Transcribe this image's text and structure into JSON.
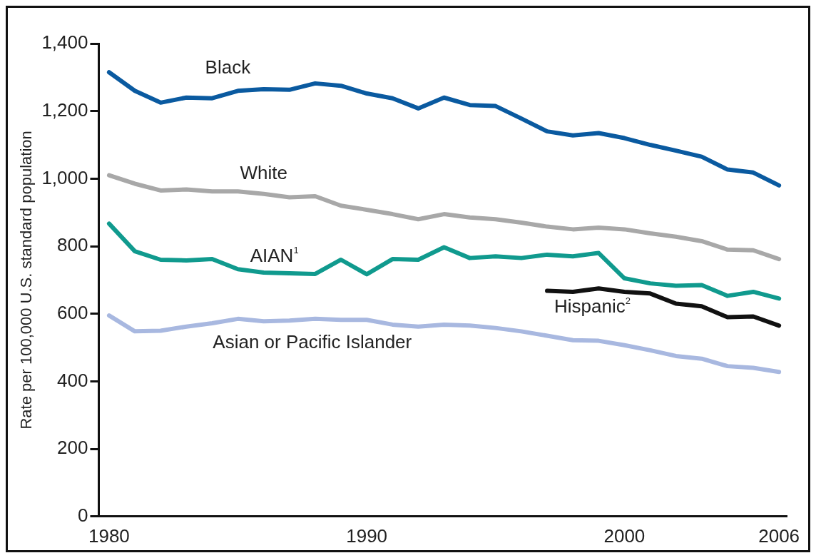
{
  "chart_data": {
    "type": "line",
    "ylabel": "Rate per 100,000 U.S. standard population",
    "x": [
      1980,
      1981,
      1982,
      1983,
      1984,
      1985,
      1986,
      1987,
      1988,
      1989,
      1990,
      1991,
      1992,
      1993,
      1994,
      1995,
      1996,
      1997,
      1998,
      1999,
      2000,
      2001,
      2002,
      2003,
      2004,
      2005,
      2006
    ],
    "series": [
      {
        "name": "Black",
        "color": "#0a5aa0",
        "values": [
          1315,
          1260,
          1225,
          1240,
          1238,
          1260,
          1265,
          1263,
          1282,
          1275,
          1252,
          1238,
          1208,
          1240,
          1218,
          1215,
          1178,
          1140,
          1128,
          1135,
          1120,
          1100,
          1083,
          1065,
          1027,
          1018,
          980
        ]
      },
      {
        "name": "White",
        "color": "#a8a8a8",
        "values": [
          1010,
          985,
          965,
          968,
          962,
          962,
          955,
          945,
          948,
          920,
          908,
          895,
          880,
          895,
          885,
          880,
          870,
          858,
          850,
          855,
          850,
          838,
          828,
          815,
          790,
          788,
          762
        ]
      },
      {
        "name": "AIAN$^{1}$",
        "color": "#109a8e",
        "values": [
          867,
          785,
          760,
          758,
          762,
          732,
          722,
          720,
          718,
          760,
          717,
          762,
          760,
          797,
          765,
          770,
          765,
          775,
          770,
          780,
          705,
          690,
          683,
          685,
          653,
          665,
          645
        ]
      },
      {
        "name": "Hispanic$^{2}$",
        "color": "#111111",
        "x": [
          1997,
          1998,
          1999,
          2000,
          2001,
          2002,
          2003,
          2004,
          2005,
          2006
        ],
        "values": [
          668,
          665,
          675,
          665,
          660,
          630,
          622,
          590,
          592,
          565
        ]
      },
      {
        "name": "Asian or Pacific Islander",
        "color": "#a8b8e0",
        "values": [
          595,
          548,
          550,
          562,
          572,
          585,
          578,
          580,
          585,
          582,
          582,
          568,
          562,
          568,
          565,
          558,
          548,
          535,
          522,
          520,
          507,
          492,
          475,
          467,
          445,
          440,
          428
        ]
      }
    ],
    "xlim": [
      1979.6,
      2006.3
    ],
    "xticks": [
      1980,
      1990,
      2000,
      2006
    ],
    "ylim": [
      0,
      1400
    ],
    "yticks": [
      0,
      {
        "value": 200,
        "label": "200"
      },
      {
        "value": 400,
        "label": "400"
      },
      {
        "value": 600,
        "label": "600"
      },
      {
        "value": 800,
        "label": "800"
      },
      {
        "value": 1000,
        "label": "1,000"
      },
      {
        "value": 1200,
        "label": "1,200"
      },
      {
        "value": 1400,
        "label": "1,400"
      }
    ],
    "grid": false,
    "legend": false,
    "marker": "none",
    "line_style": "solid"
  }
}
